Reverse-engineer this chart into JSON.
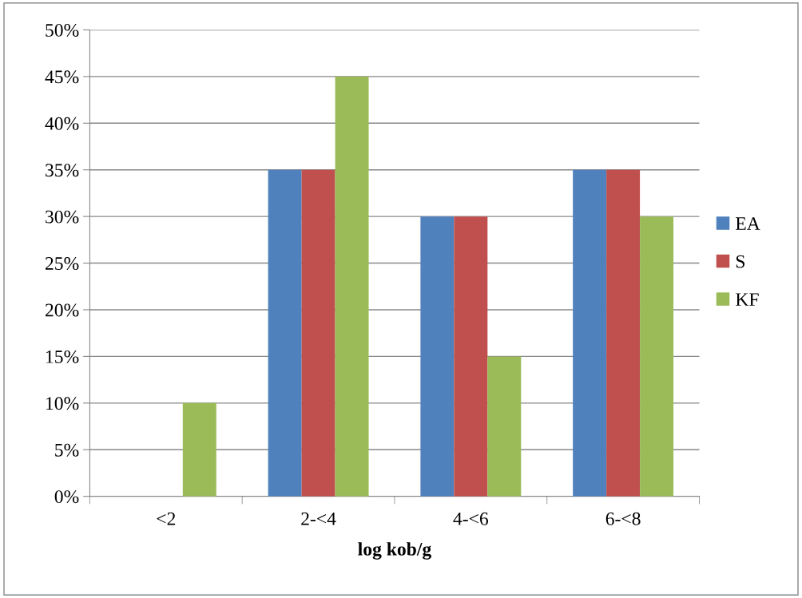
{
  "chart_data": {
    "type": "bar",
    "xlabel": "log kob/g",
    "categories": [
      "<2",
      "2-<4",
      "4-<6",
      "6-<8"
    ],
    "series": [
      {
        "name": "EA",
        "color": "#4f81bd",
        "values": [
          0,
          35,
          30,
          35
        ]
      },
      {
        "name": "S",
        "color": "#c0504d",
        "values": [
          0,
          35,
          30,
          35
        ]
      },
      {
        "name": "KF",
        "color": "#9bbb59",
        "values": [
          10,
          45,
          15,
          30
        ]
      }
    ],
    "ylim": [
      0,
      50
    ],
    "yticks": [
      {
        "value": 0,
        "label": "0%"
      },
      {
        "value": 5,
        "label": "5%"
      },
      {
        "value": 10,
        "label": "10%"
      },
      {
        "value": 15,
        "label": "15%"
      },
      {
        "value": 20,
        "label": "20%"
      },
      {
        "value": 25,
        "label": "25%"
      },
      {
        "value": 30,
        "label": "30%"
      },
      {
        "value": 35,
        "label": "35%"
      },
      {
        "value": 40,
        "label": "40%"
      },
      {
        "value": 45,
        "label": "45%"
      },
      {
        "value": 50,
        "label": "50%"
      }
    ],
    "grid": "y",
    "legend": "right"
  }
}
